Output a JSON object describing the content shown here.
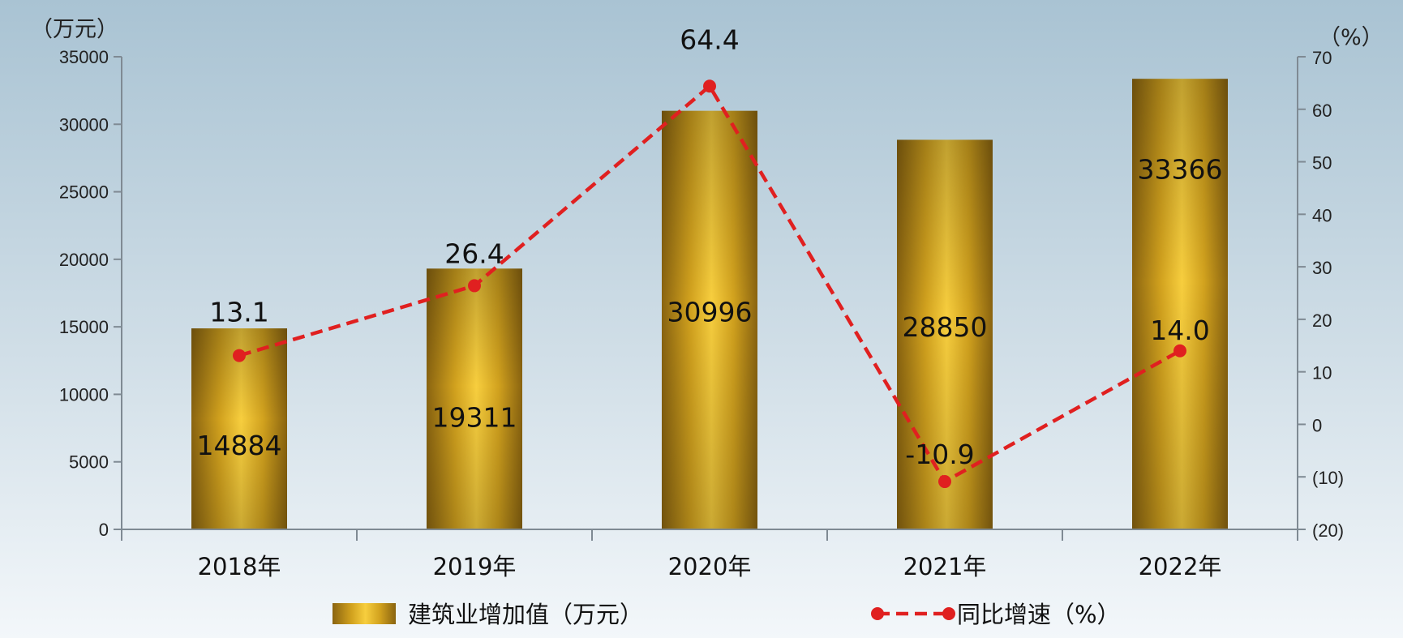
{
  "chart_data": {
    "type": "bar",
    "title": "",
    "y_left_unit": "（万元）",
    "y_right_unit": "（%）",
    "categories": [
      "2018年",
      "2019年",
      "2020年",
      "2021年",
      "2022年"
    ],
    "bar_series": {
      "name": "建筑业增加值（万元）",
      "values": [
        14884,
        19311,
        30996,
        28850,
        33366
      ],
      "color": "#D4A520"
    },
    "line_series": {
      "name": "同比增速（%）",
      "values": [
        13.1,
        26.4,
        64.4,
        -10.9,
        14.0
      ],
      "labels": [
        "13.1",
        "26.4",
        "64.4",
        "-10.9",
        "14.0"
      ],
      "color": "#E02020",
      "style": "dashed"
    },
    "y_left": {
      "min": 0,
      "max": 35000,
      "ticks": [
        "0",
        "5000",
        "10000",
        "15000",
        "20000",
        "25000",
        "30000",
        "35000"
      ]
    },
    "y_right": {
      "min": -20,
      "max": 70,
      "ticks": [
        "(20)",
        "(10)",
        "0",
        "10",
        "20",
        "30",
        "40",
        "50",
        "60",
        "70"
      ],
      "negative_color": "#E02020"
    },
    "grid": false,
    "legend_position": "bottom"
  }
}
